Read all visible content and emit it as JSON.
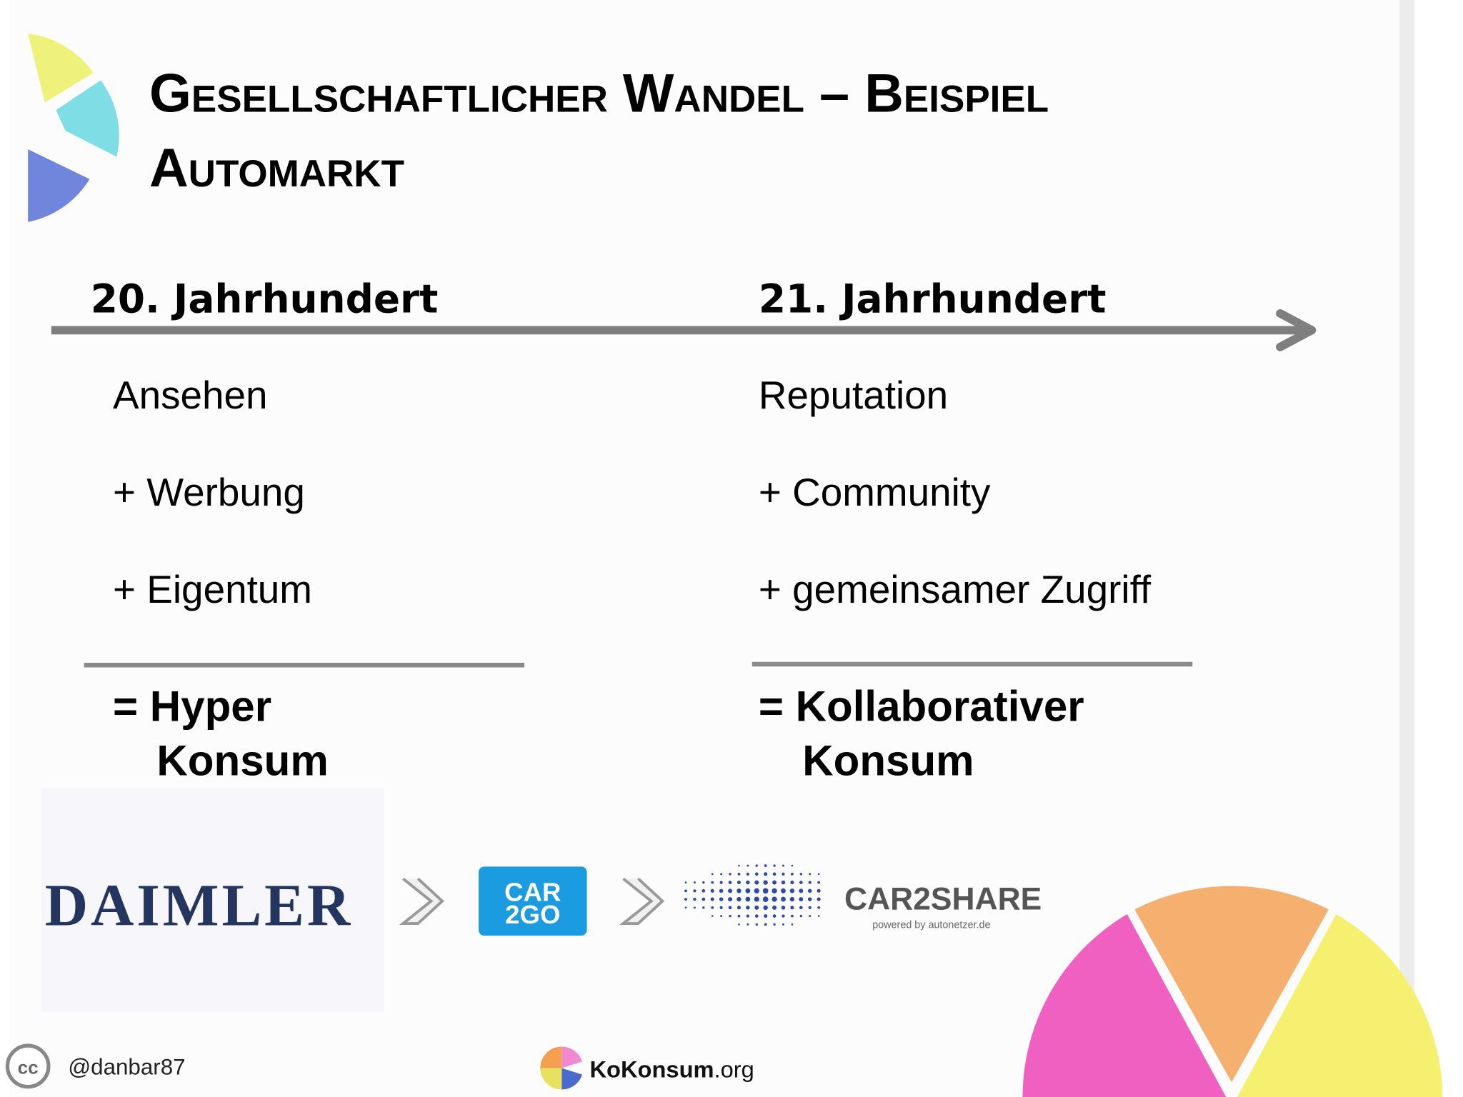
{
  "slide": {
    "title": {
      "line1": "Gesellschaftlicher Wandel – Beispiel",
      "line2": "Automarkt"
    },
    "columns": [
      {
        "header": "20. Jahrhundert",
        "items": [
          "Ansehen",
          "+ Werbung",
          "+ Eigentum"
        ],
        "result": [
          "= Hyper",
          "Konsum"
        ]
      },
      {
        "header": "21. Jahrhundert",
        "items": [
          "Reputation",
          "+ Community",
          "+ gemeinsamer Zugriff"
        ],
        "result": [
          "= Kollaborativer",
          "Konsum"
        ]
      }
    ],
    "logos": {
      "daimler": "DAIMLER",
      "car2go": [
        "CAR",
        "2GO"
      ],
      "car2share": "CAR2SHARE",
      "car2share_sub": "powered by autonetzer.de"
    },
    "footer": {
      "license": "cc",
      "author": "@danbar87",
      "site": "KoKonsum",
      "site_suffix": ".org"
    }
  }
}
